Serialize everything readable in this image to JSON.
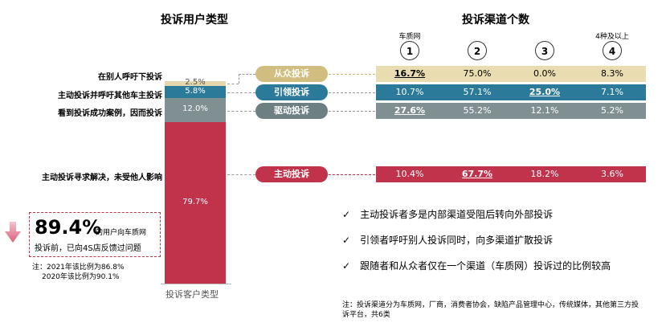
{
  "left": {
    "title": "投诉用户类型",
    "xlabel": "投诉客户类型",
    "segments": [
      {
        "label": "在别人呼吁下投诉",
        "value": "2.5%",
        "color": "#e4d7ad"
      },
      {
        "label": "主动投诉并呼吁其他车主投诉",
        "value": "5.8%",
        "color": "#2b7a99"
      },
      {
        "label": "看到投诉成功案例，因而投诉",
        "value": "12.0%",
        "color": "#7f8f92"
      },
      {
        "label": "主动投诉寻求解决，未受他人影响",
        "value": "79.7%",
        "color": "#c0334b"
      }
    ],
    "callout": {
      "big": "89.4%",
      "text1": "的用户向车质网",
      "text2": "投诉前，已向4S店反馈过问题",
      "note1": "注：2021年该比例为86.8%",
      "note2": "2020年该比例为90.1%"
    }
  },
  "right": {
    "title": "投诉渠道个数",
    "columns": [
      {
        "header": "车质网",
        "num": "1"
      },
      {
        "header": "",
        "num": "2"
      },
      {
        "header": "",
        "num": "3"
      },
      {
        "header": "4种及以上",
        "num": "4"
      }
    ],
    "rows": [
      {
        "pill": "从众投诉",
        "pill_color": "#d2bd80",
        "bar_color": "#e8dcb0",
        "text_color": "#000",
        "values": [
          "16.7%",
          "75.0%",
          "0.0%",
          "8.3%"
        ],
        "highlight": 0
      },
      {
        "pill": "引领投诉",
        "pill_color": "#2b7a99",
        "bar_color": "#2b7a99",
        "text_color": "#fff",
        "values": [
          "10.7%",
          "57.1%",
          "25.0%",
          "7.1%"
        ],
        "highlight": 2
      },
      {
        "pill": "驱动投诉",
        "pill_color": "#6e7f83",
        "bar_color": "#7f8f92",
        "text_color": "#fff",
        "values": [
          "27.6%",
          "55.2%",
          "12.1%",
          "5.2%"
        ],
        "highlight": 0
      },
      {
        "pill": "主动投诉",
        "pill_color": "#c0334b",
        "bar_color": "#c0334b",
        "text_color": "#fff",
        "values": [
          "10.4%",
          "67.7%",
          "18.2%",
          "3.6%"
        ],
        "highlight": 1
      }
    ]
  },
  "bullets": [
    "主动投诉者多是内部渠道受阻后转向外部投诉",
    "引领者呼吁别人投诉同时，向多渠道扩散投诉",
    "跟随者和从众者仅在一个渠道（车质网）投诉过的比例较高"
  ],
  "check_mark": "✓",
  "footnote": {
    "line1": "注：投诉渠道分为车质网，厂商，消费者协会，缺陷产品管理中心，传统媒体，其他第三方投",
    "line2": "诉平台，共6类"
  },
  "chart_data": [
    {
      "type": "bar",
      "title": "投诉用户类型",
      "xlabel": "投诉客户类型",
      "categories": [
        "投诉客户类型"
      ],
      "series": [
        {
          "name": "主动投诉寻求解决，未受他人影响",
          "values": [
            79.7
          ]
        },
        {
          "name": "看到投诉成功案例，因而投诉",
          "values": [
            12.0
          ]
        },
        {
          "name": "主动投诉并呼吁其他车主投诉",
          "values": [
            5.8
          ]
        },
        {
          "name": "在别人呼吁下投诉",
          "values": [
            2.5
          ]
        }
      ],
      "stacked": true
    },
    {
      "type": "table",
      "title": "投诉渠道个数",
      "columns": [
        "1",
        "2",
        "3",
        "4"
      ],
      "rows": [
        "从众投诉",
        "引领投诉",
        "驱动投诉",
        "主动投诉"
      ],
      "values": [
        [
          16.7,
          75.0,
          0.0,
          8.3
        ],
        [
          10.7,
          57.1,
          25.0,
          7.1
        ],
        [
          27.6,
          55.2,
          12.1,
          5.2
        ],
        [
          10.4,
          67.7,
          18.2,
          3.6
        ]
      ]
    }
  ]
}
